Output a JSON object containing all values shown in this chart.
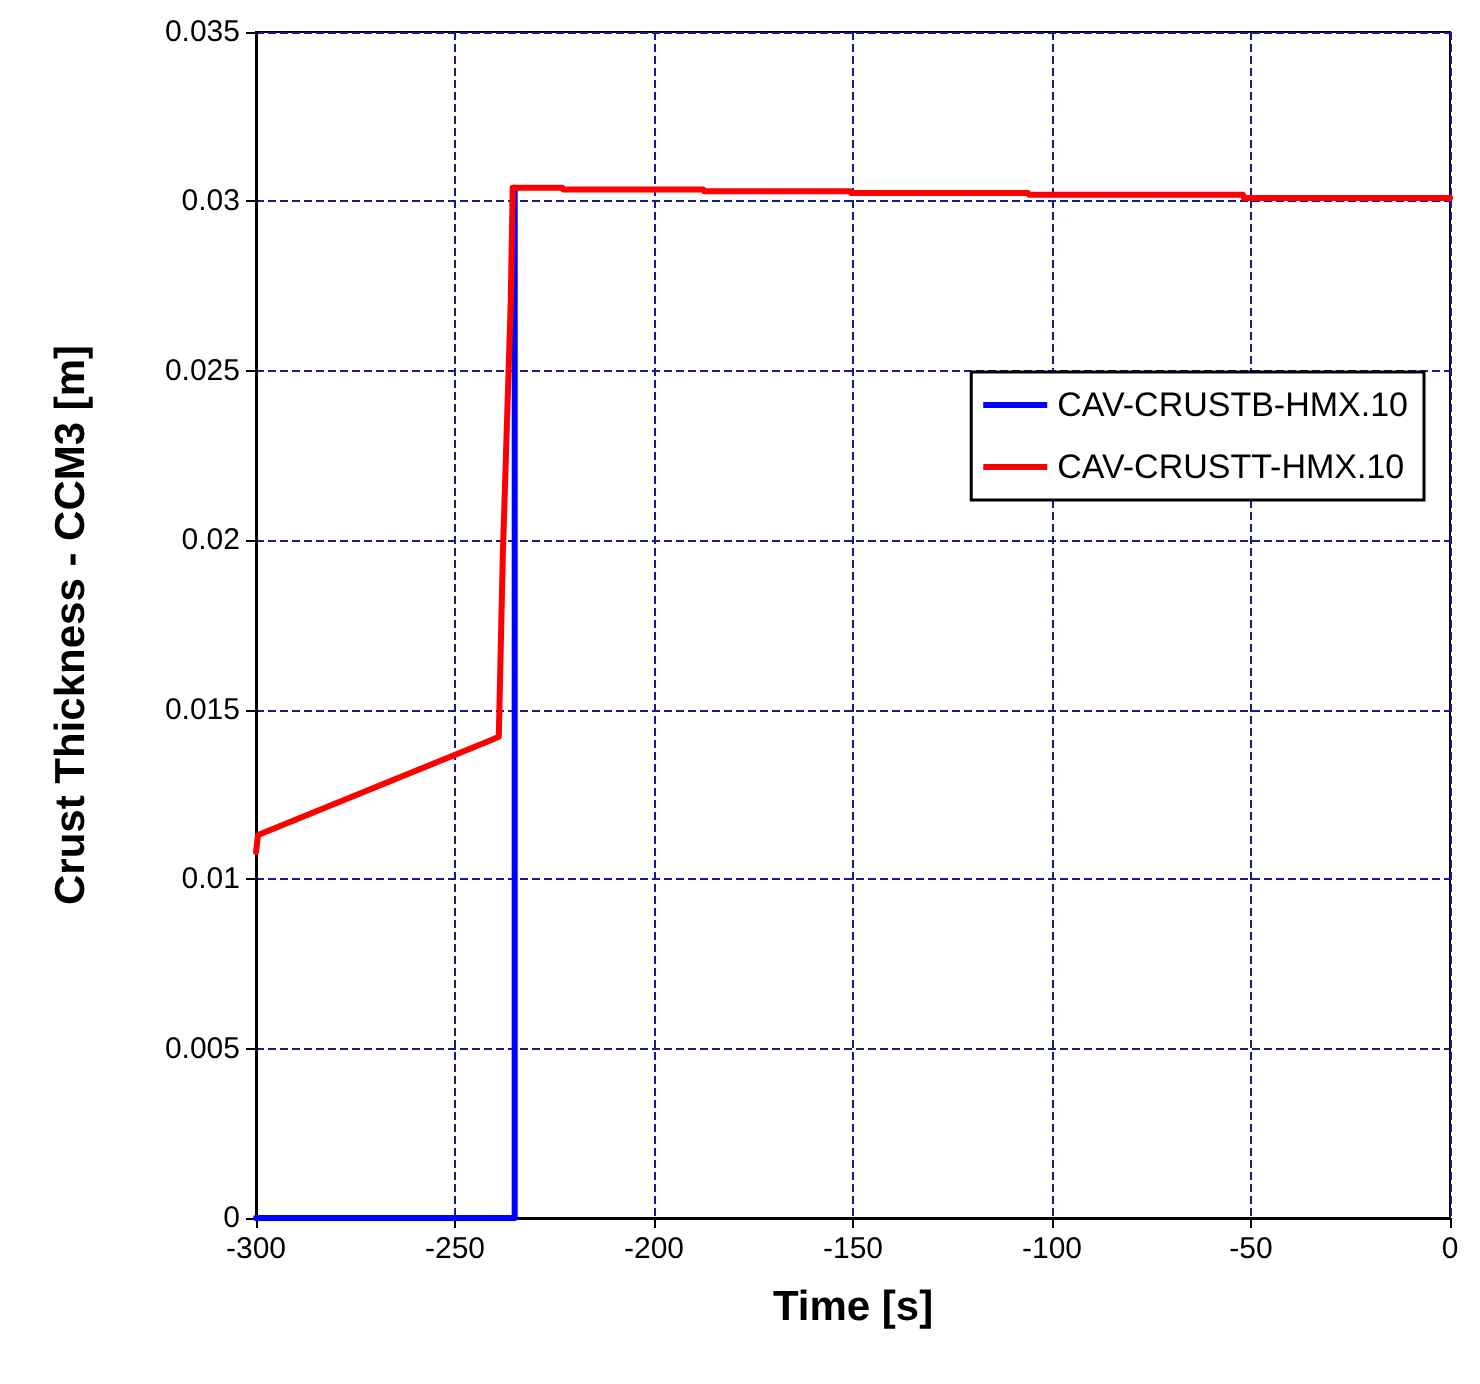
{
  "chart_data": {
    "type": "line",
    "xlabel": "Time [s]",
    "ylabel": "Crust Thickness - CCM3 [m]",
    "xlim": [
      -300,
      0
    ],
    "xticks": [
      -300,
      -250,
      -200,
      -150,
      -100,
      -50,
      0
    ],
    "ylim": [
      0,
      0.035
    ],
    "yticks": [
      0,
      0.005,
      0.01,
      0.015,
      0.02,
      0.025,
      0.03,
      0.035
    ],
    "grid": true,
    "legend": "right",
    "marker": "none",
    "line_style": "solid",
    "series": [
      {
        "name": "CAV-CRUSTB-HMX.10",
        "color": "#0000ff",
        "x": [
          -300,
          -235,
          -235
        ],
        "values": [
          0,
          0,
          0.0304
        ]
      },
      {
        "name": "CAV-CRUSTT-HMX.10",
        "color": "#ff0000",
        "x": [
          -300,
          -299.5,
          -241,
          -239,
          -238,
          -236,
          -235.5,
          -223,
          -222.8,
          -187.6,
          -187.4,
          -150.7,
          -150.5,
          -106,
          -105.8,
          -52,
          -51.8,
          0
        ],
        "values": [
          0.0108,
          0.0113,
          0.0141,
          0.0142,
          0.0195,
          0.027,
          0.0304,
          0.0304,
          0.03035,
          0.03035,
          0.0303,
          0.0303,
          0.03025,
          0.03025,
          0.0302,
          0.0302,
          0.0301,
          0.0301
        ]
      }
    ]
  }
}
